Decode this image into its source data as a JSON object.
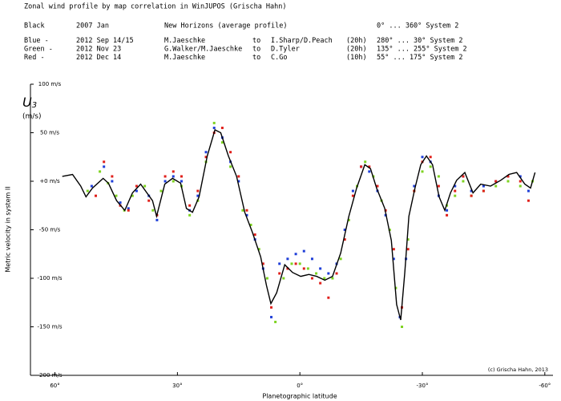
{
  "chart_data": {
    "type": "scatter",
    "title": "Zonal wind profile by map correlation in WinJUPOS (Grischa Hahn)",
    "header_rows": [
      [
        "Black",
        "2007 Jan",
        "New Horizons (average profile)",
        "",
        "",
        "",
        "0° ... 360° System 2"
      ],
      [
        "Blue  -",
        "2012 Sep 14/15",
        "M.Jaeschke",
        "to",
        "I.Sharp/D.Peach",
        "(20h)",
        "280° ... 30° System 2"
      ],
      [
        "Green -",
        "2012 Nov 23",
        "G.Walker/M.Jaeschke",
        "to",
        "D.Tyler",
        "(20h)",
        "135° ... 255° System 2"
      ],
      [
        "Red   -",
        "2012 Dec 14",
        "M.Jaeschke",
        "to",
        "C.Go",
        "(10h)",
        "55° ... 175° System 2"
      ]
    ],
    "symbol": "U",
    "symbol_subscript": "3",
    "unit": "(m/s)",
    "x_label": "Planetographic latitude",
    "y_label": "Metric velocity in system II",
    "credit": "(c) Grischa Hahn, 2013",
    "xlim": [
      66,
      -62
    ],
    "ylim": [
      -200,
      100
    ],
    "xticks": [
      {
        "value": 60,
        "label": "60°"
      },
      {
        "value": 30,
        "label": "30°"
      },
      {
        "value": 0,
        "label": "0°"
      },
      {
        "value": -30,
        "label": "-30°"
      },
      {
        "value": -60,
        "label": "-60°"
      }
    ],
    "yticks": [
      {
        "value": 100,
        "label": "100 m/s"
      },
      {
        "value": 50,
        "label": "50 m/s"
      },
      {
        "value": 0,
        "label": "+0 m/s"
      },
      {
        "value": -50,
        "label": "-50 m/s"
      },
      {
        "value": -100,
        "label": "-100 m/s"
      },
      {
        "value": -150,
        "label": "-150 m/s"
      },
      {
        "value": -200,
        "label": "-200 m/s"
      }
    ],
    "series": [
      {
        "color": "#000000",
        "mode": "line",
        "x": [
          58.2,
          55.7,
          53.7,
          52.4,
          50.8,
          48.2,
          46.9,
          44.9,
          42.9,
          41.0,
          39.0,
          36.1,
          35.1,
          33.1,
          31.2,
          29.2,
          27.8,
          26.3,
          24.7,
          22.7,
          20.8,
          19.4,
          17.5,
          15.5,
          13.5,
          11.6,
          9.6,
          8.2,
          7.1,
          5.7,
          3.7,
          1.8,
          -0.2,
          -2.2,
          -4.1,
          -6.1,
          -8.0,
          -10.0,
          -12.0,
          -13.9,
          -15.9,
          -17.3,
          -18.8,
          -20.8,
          -22.4,
          -23.7,
          -24.7,
          -25.7,
          -26.7,
          -28.2,
          -29.6,
          -31.0,
          -32.5,
          -34.1,
          -35.5,
          -36.9,
          -38.4,
          -40.4,
          -42.4,
          -44.3,
          -46.7,
          -49.2,
          -51.2,
          -53.1,
          -55.1,
          -56.5,
          -57.6
        ],
        "values": [
          5,
          7,
          -5,
          -16,
          -7,
          3,
          -2,
          -20,
          -30,
          -12,
          -3,
          -20,
          -36,
          -3,
          3,
          -2,
          -28,
          -32,
          -16,
          26,
          53,
          50,
          26,
          5,
          -32,
          -53,
          -78,
          -107,
          -126,
          -115,
          -86,
          -94,
          -98,
          -96,
          -98,
          -102,
          -98,
          -74,
          -36,
          -7,
          17,
          13,
          -7,
          -28,
          -61,
          -127,
          -143,
          -94,
          -36,
          -7,
          17,
          26,
          17,
          -16,
          -30,
          -12,
          1,
          9,
          -12,
          -3,
          -5,
          1,
          7,
          9,
          -3,
          -7,
          9
        ]
      },
      {
        "color": "#1f3fd8",
        "mode": "points",
        "x": [
          51,
          48,
          46,
          44,
          42,
          40,
          37,
          35,
          33,
          31,
          29,
          27,
          25,
          23,
          21,
          19,
          17,
          15,
          13,
          11,
          9,
          7,
          5,
          3,
          1,
          -1,
          -3,
          -5,
          -7,
          -9,
          -11,
          -13,
          -15,
          -17,
          -19,
          -21,
          -23,
          -24.5,
          -26,
          -28,
          -30,
          -32,
          -34,
          -36,
          -38,
          -40,
          -42,
          -45,
          -48,
          -51,
          -54,
          -56
        ],
        "values": [
          -5,
          15,
          0,
          -22,
          -28,
          -10,
          -15,
          -40,
          0,
          5,
          0,
          -30,
          -15,
          30,
          55,
          45,
          20,
          0,
          -35,
          -60,
          -90,
          -140,
          -85,
          -80,
          -75,
          -72,
          -80,
          -90,
          -95,
          -85,
          -50,
          -10,
          15,
          10,
          -10,
          -35,
          -80,
          -140,
          -80,
          -5,
          25,
          20,
          -15,
          -30,
          -5,
          5,
          -10,
          -5,
          0,
          5,
          5,
          -10
        ]
      },
      {
        "color": "#7ed321",
        "mode": "points",
        "x": [
          52,
          49,
          47,
          45,
          43,
          41,
          38,
          36,
          34,
          31,
          29,
          27,
          25,
          23,
          21,
          19,
          17,
          14,
          12,
          10,
          8,
          6,
          4,
          2,
          0,
          -2,
          -4,
          -6,
          -8,
          -10,
          -12,
          -14,
          -16,
          -18,
          -20,
          -22,
          -23.5,
          -25,
          -26.5,
          -28,
          -30,
          -32,
          -34,
          -36,
          -38,
          -40,
          -42,
          -45,
          -48,
          -51,
          -54,
          -57
        ],
        "values": [
          -10,
          10,
          -2,
          -15,
          -30,
          -15,
          -5,
          -30,
          -10,
          0,
          -5,
          -35,
          -20,
          20,
          60,
          40,
          15,
          -30,
          -45,
          -70,
          -100,
          -145,
          -100,
          -85,
          -85,
          -90,
          -95,
          -100,
          -100,
          -80,
          -40,
          -5,
          20,
          5,
          -20,
          -50,
          -110,
          -150,
          -60,
          -10,
          10,
          15,
          5,
          -25,
          -15,
          0,
          -15,
          -10,
          -5,
          0,
          -5,
          0
        ]
      },
      {
        "color": "#e0201b",
        "mode": "points",
        "x": [
          50,
          48,
          46,
          44,
          42,
          40,
          37,
          35,
          33,
          31,
          29,
          27,
          25,
          23,
          21,
          19,
          17,
          15,
          13,
          11,
          9,
          7,
          5,
          3,
          1,
          -1,
          -3,
          -5,
          -7,
          -9,
          -11,
          -13,
          -15,
          -17,
          -19,
          -21,
          -23,
          -25,
          -26.5,
          -28,
          -30,
          -32,
          -34,
          -36,
          -38,
          -40,
          -42,
          -45,
          -48,
          -51,
          -54,
          -56
        ],
        "values": [
          -15,
          20,
          5,
          -25,
          -30,
          -5,
          -20,
          -35,
          5,
          10,
          5,
          -25,
          -10,
          25,
          50,
          55,
          30,
          5,
          -30,
          -55,
          -85,
          -130,
          -95,
          -90,
          -85,
          -90,
          -100,
          -105,
          -120,
          -95,
          -60,
          -15,
          15,
          15,
          -5,
          -30,
          -70,
          -130,
          -70,
          -10,
          20,
          25,
          -5,
          -35,
          -10,
          5,
          -15,
          -10,
          0,
          5,
          0,
          -20
        ]
      }
    ]
  }
}
